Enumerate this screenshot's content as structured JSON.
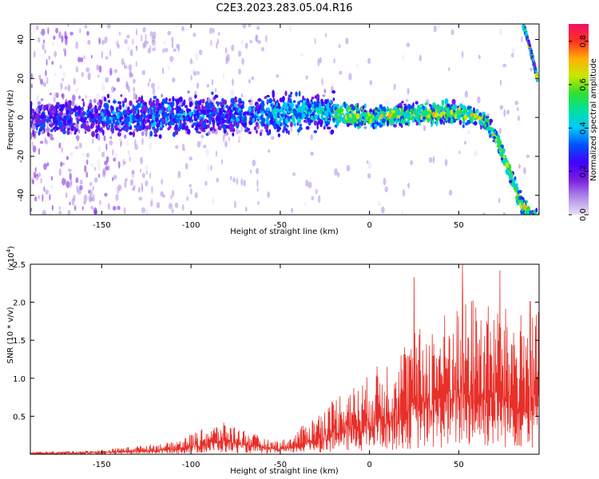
{
  "title": "C2E3.2023.283.05.04.R16",
  "colors": {
    "snr_line": "#e8302a",
    "colormap": [
      "#e8e0f8",
      "#b08ce8",
      "#7a1ee0",
      "#4000ff",
      "#0050ff",
      "#00c8ff",
      "#00e0a0",
      "#30e030",
      "#c8e800",
      "#ffb000",
      "#ff3020",
      "#f0106a"
    ]
  },
  "chart_data": [
    {
      "type": "heatmap",
      "name": "spectrogram",
      "xlabel": "Height of straight line (km)",
      "ylabel": "Frequency (Hz)",
      "xlim": [
        -190,
        95
      ],
      "ylim": [
        -50,
        48
      ],
      "x_ticks": [
        -150,
        -100,
        -50,
        0,
        50
      ],
      "y_ticks": [
        -40,
        -20,
        0,
        20,
        40
      ],
      "colorbar": {
        "label": "Normalized spectral amplitude",
        "range": [
          0.0,
          0.88
        ],
        "ticks": [
          "0.0",
          "0.2",
          "0.4",
          "0.6",
          "0.8"
        ]
      },
      "ridge": {
        "x": [
          -190,
          -150,
          -100,
          -50,
          -30,
          0,
          30,
          55,
          65,
          72,
          78,
          84,
          90
        ],
        "y": [
          0,
          0,
          1,
          2,
          3,
          0,
          2,
          2,
          -2,
          -12,
          -27,
          -42,
          -52
        ]
      },
      "ridge2": {
        "x": [
          86,
          88,
          90,
          92,
          94
        ],
        "y": [
          48,
          42,
          35,
          28,
          20
        ]
      }
    },
    {
      "type": "line",
      "name": "snr",
      "xlabel": "Height of straight line (km)",
      "ylabel": "SNR (10 * v/v)",
      "y_scale_label": "(x10",
      "y_scale_exp": "4",
      "y_scale_close": ")",
      "xlim": [
        -190,
        95
      ],
      "ylim": [
        0,
        25000
      ],
      "x_ticks": [
        -150,
        -100,
        -50,
        0,
        50
      ],
      "y_ticks": [
        {
          "value": 5000,
          "label": "0.5"
        },
        {
          "value": 10000,
          "label": "1.0"
        },
        {
          "value": 15000,
          "label": "1.5"
        },
        {
          "value": 20000,
          "label": "2.0"
        },
        {
          "value": 25000,
          "label": "2.5"
        }
      ],
      "envelope": {
        "x": [
          -190,
          -150,
          -130,
          -110,
          -100,
          -90,
          -80,
          -70,
          -55,
          -45,
          -35,
          -25,
          -15,
          -5,
          5,
          15,
          25,
          35,
          45,
          55,
          65,
          75,
          85,
          95
        ],
        "y": [
          200,
          450,
          900,
          1300,
          2200,
          3000,
          3400,
          2600,
          1400,
          1700,
          3500,
          5000,
          7000,
          7500,
          9500,
          11000,
          13000,
          14000,
          15500,
          17000,
          16000,
          15500,
          15000,
          15000
        ]
      },
      "peaks": [
        {
          "x": 25,
          "y": 23300
        },
        {
          "x": 52,
          "y": 25000
        },
        {
          "x": 73,
          "y": 24200
        },
        {
          "x": 90,
          "y": 20100
        }
      ]
    }
  ]
}
